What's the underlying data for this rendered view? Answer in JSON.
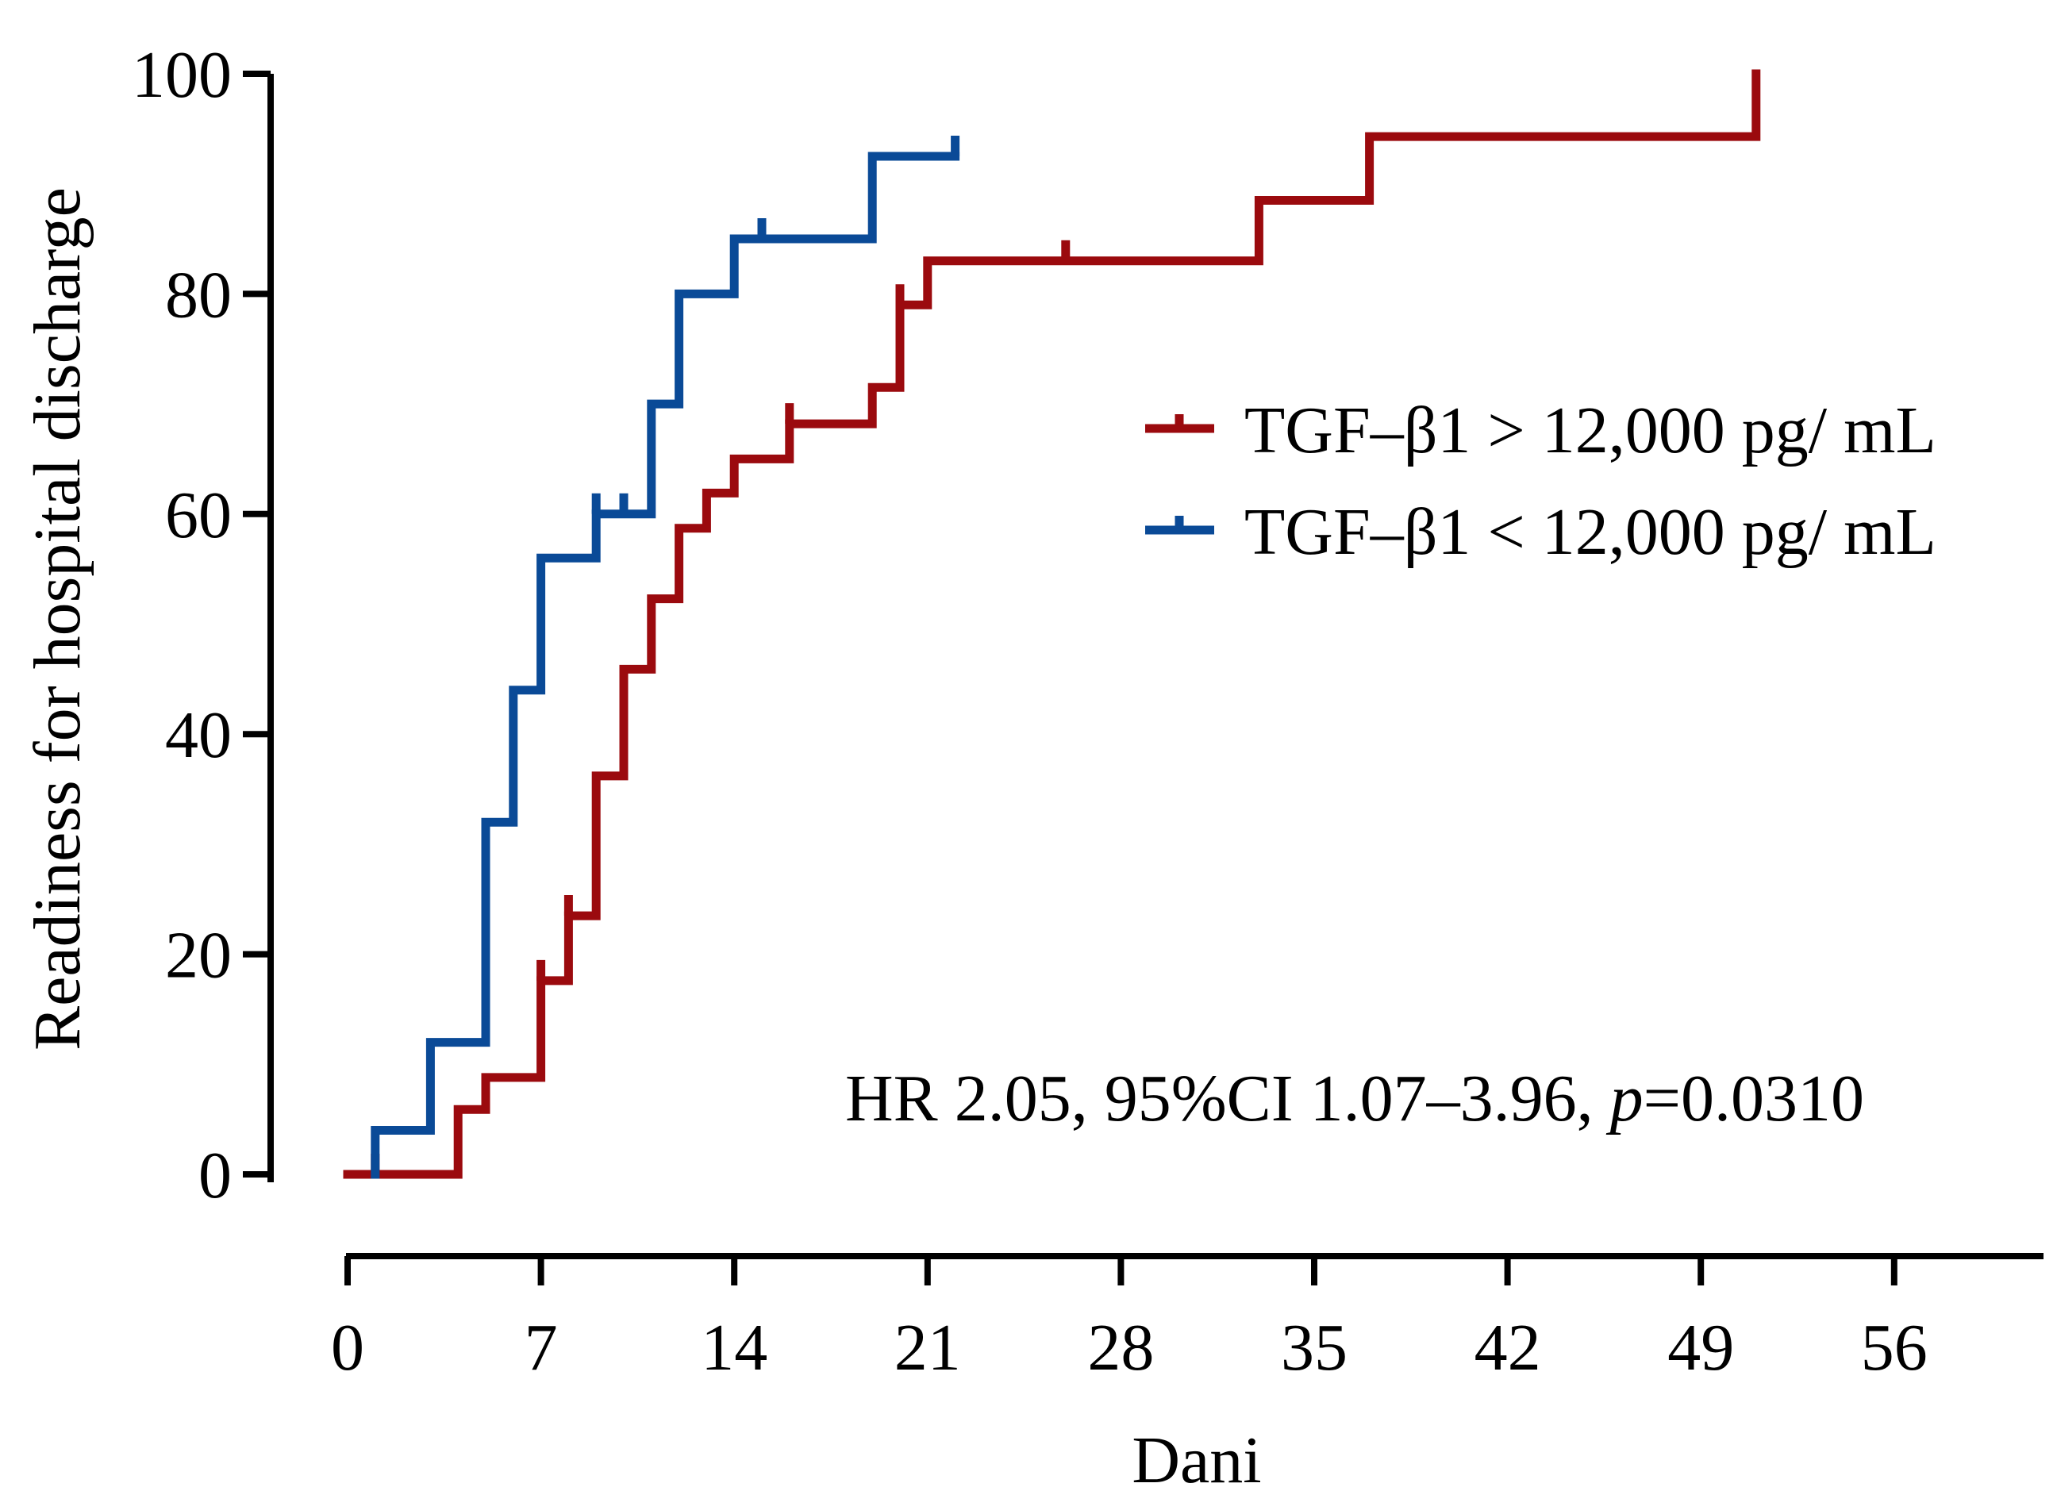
{
  "chart_data": {
    "type": "line",
    "subtype": "kaplan-meier-step",
    "title": "",
    "xlabel": "Dani",
    "ylabel": "Readiness for hospital discharge",
    "xlim": [
      0,
      60
    ],
    "ylim": [
      0,
      100
    ],
    "xticks": [
      0,
      7,
      14,
      21,
      28,
      35,
      42,
      49,
      56
    ],
    "yticks": [
      0,
      20,
      40,
      60,
      80,
      100
    ],
    "grid": false,
    "legend_position": "right",
    "annotation": {
      "prefix": "HR 2.05, 95%CI 1.07–3.96, ",
      "p_symbol": "p",
      "suffix": "=0.0310"
    },
    "series": [
      {
        "name": "TGF–β1 > 12,000 pg/ mL",
        "color": "#9b0a0e",
        "steps": [
          [
            0,
            0
          ],
          [
            4,
            0
          ],
          [
            4,
            5.9
          ],
          [
            5,
            5.9
          ],
          [
            5,
            8.8
          ],
          [
            7,
            8.8
          ],
          [
            7,
            17.6
          ],
          [
            8,
            17.6
          ],
          [
            8,
            23.5
          ],
          [
            9,
            23.5
          ],
          [
            9,
            36.2
          ],
          [
            10,
            36.2
          ],
          [
            10,
            45.9
          ],
          [
            11,
            45.9
          ],
          [
            11,
            52.3
          ],
          [
            12,
            52.3
          ],
          [
            12,
            58.7
          ],
          [
            13,
            58.7
          ],
          [
            13,
            61.9
          ],
          [
            14,
            61.9
          ],
          [
            14,
            65.0
          ],
          [
            16,
            65.0
          ],
          [
            16,
            68.2
          ],
          [
            19,
            68.2
          ],
          [
            19,
            71.5
          ],
          [
            20,
            71.5
          ],
          [
            20,
            79.0
          ],
          [
            21,
            79.0
          ],
          [
            21,
            83.0
          ],
          [
            33,
            83.0
          ],
          [
            33,
            88.5
          ],
          [
            37,
            88.5
          ],
          [
            37,
            94.3
          ],
          [
            51,
            94.3
          ],
          [
            51,
            100
          ]
        ],
        "censored": [
          [
            1,
            0
          ],
          [
            7,
            17.6
          ],
          [
            8,
            23.5
          ],
          [
            16,
            68.2
          ],
          [
            20,
            79.0
          ],
          [
            26,
            83.0
          ]
        ]
      },
      {
        "name": "TGF–β1 < 12,000 pg/ mL",
        "color": "#0a4a97",
        "steps": [
          [
            1,
            0
          ],
          [
            1,
            4.0
          ],
          [
            3,
            4.0
          ],
          [
            3,
            12.0
          ],
          [
            5,
            12.0
          ],
          [
            5,
            32.0
          ],
          [
            6,
            32.0
          ],
          [
            6,
            44.0
          ],
          [
            7,
            44.0
          ],
          [
            7,
            56.0
          ],
          [
            9,
            56.0
          ],
          [
            9,
            60.0
          ],
          [
            11,
            60.0
          ],
          [
            11,
            70.0
          ],
          [
            12,
            70.0
          ],
          [
            12,
            80.0
          ],
          [
            14,
            80.0
          ],
          [
            14,
            85.0
          ],
          [
            19,
            85.0
          ],
          [
            19,
            92.5
          ],
          [
            22,
            92.5
          ]
        ],
        "censored": [
          [
            9,
            60.0
          ],
          [
            10,
            60.0
          ],
          [
            15,
            85.0
          ],
          [
            22,
            92.5
          ]
        ]
      }
    ]
  }
}
